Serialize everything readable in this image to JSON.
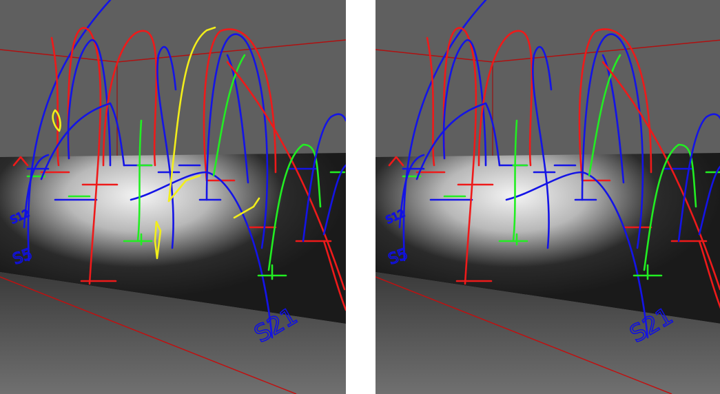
{
  "panels": [
    {
      "labels": [
        "S5",
        "S12",
        "S21"
      ]
    },
    {
      "labels": [
        "S5",
        "S12",
        "S21"
      ]
    }
  ]
}
